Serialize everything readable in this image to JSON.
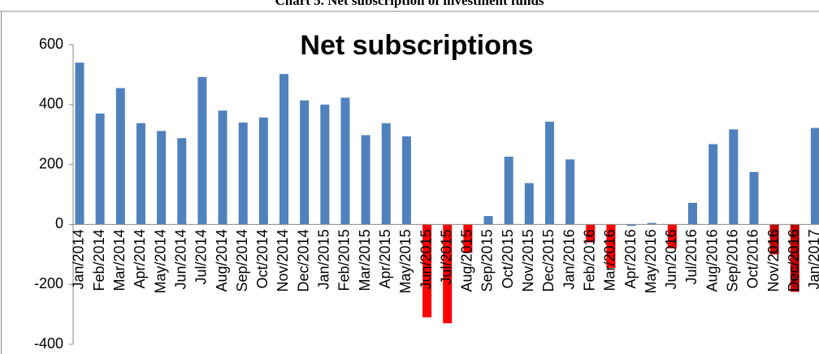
{
  "chart_data": {
    "type": "bar",
    "caption": "Chart 5. Net subscription of investment funds",
    "title": "Net subscriptions",
    "categories": [
      "Jan/2014",
      "Feb/2014",
      "Mar/2014",
      "Apr/2014",
      "May/2014",
      "Jun/2014",
      "Jul/2014",
      "Aug/2014",
      "Sep/2014",
      "Oct/2014",
      "Nov/2014",
      "Dec/2014",
      "Jan/2015",
      "Feb/2015",
      "Mar/2015",
      "Apr/2015",
      "May/2015",
      "Jun/2015",
      "Jul/2015",
      "Aug/2015",
      "Sep/2015",
      "Oct/2015",
      "Nov/2015",
      "Dec/2015",
      "Jan/2016",
      "Feb/2016",
      "Mar/2016",
      "Apr/2016",
      "May/2016",
      "Jun/2016",
      "Jul/2016",
      "Aug/2016",
      "Sep/2016",
      "Oct/2016",
      "Nov/2016",
      "Dec/2016",
      "Jan/2017"
    ],
    "values": [
      540,
      370,
      455,
      338,
      312,
      288,
      492,
      380,
      340,
      357,
      502,
      414,
      400,
      423,
      298,
      338,
      294,
      -310,
      -330,
      -95,
      28,
      226,
      138,
      343,
      217,
      -60,
      -145,
      -5,
      5,
      -80,
      72,
      268,
      317,
      175,
      -100,
      -225,
      322
    ],
    "colors": [
      "#4f81bd",
      "#4f81bd",
      "#4f81bd",
      "#4f81bd",
      "#4f81bd",
      "#4f81bd",
      "#4f81bd",
      "#4f81bd",
      "#4f81bd",
      "#4f81bd",
      "#4f81bd",
      "#4f81bd",
      "#4f81bd",
      "#4f81bd",
      "#4f81bd",
      "#4f81bd",
      "#4f81bd",
      "#ff0000",
      "#ff0000",
      "#ff0000",
      "#4f81bd",
      "#4f81bd",
      "#4f81bd",
      "#4f81bd",
      "#4f81bd",
      "#ff0000",
      "#ff0000",
      "#4f81bd",
      "#4f81bd",
      "#ff0000",
      "#4f81bd",
      "#4f81bd",
      "#4f81bd",
      "#4f81bd",
      "#c00000",
      "#c00000",
      "#4f81bd"
    ],
    "ylim": [
      -400,
      600
    ],
    "yticks": [
      -400,
      -200,
      0,
      200,
      400,
      600
    ],
    "grid": false
  }
}
